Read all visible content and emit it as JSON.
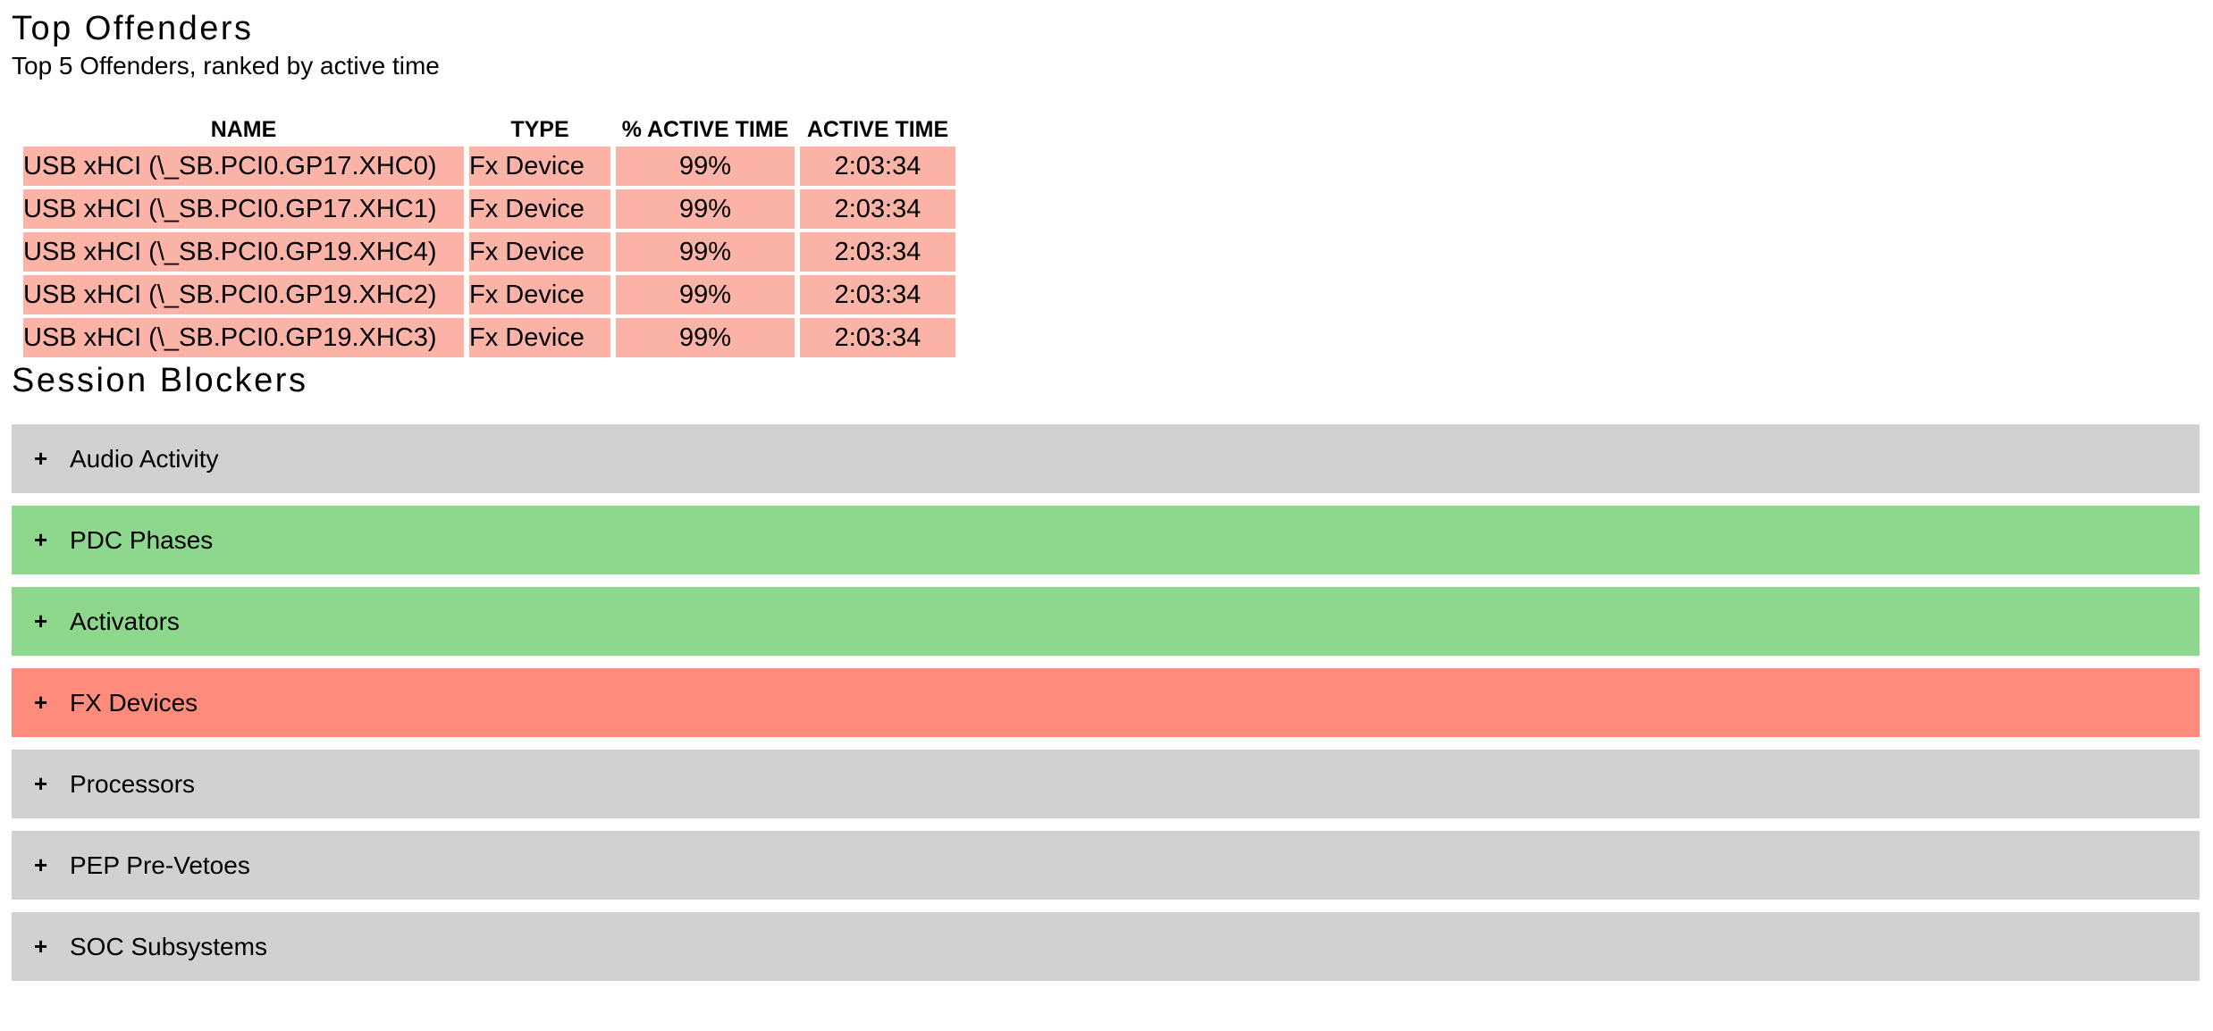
{
  "colors": {
    "row_highlight": "#fbb3a8",
    "bar_gray": "#d1d1d1",
    "bar_green": "#8ed88d",
    "bar_red": "#fd8c7d",
    "text": "#000000"
  },
  "top_offenders": {
    "title": "Top Offenders",
    "subtitle": "Top 5 Offenders, ranked by active time",
    "table": {
      "row_bg": "#fbb3a8",
      "columns": [
        "NAME",
        "TYPE",
        "% ACTIVE TIME",
        "ACTIVE TIME"
      ],
      "rows": [
        {
          "name": "USB xHCI (\\_SB.PCI0.GP17.XHC0)",
          "type": "Fx Device",
          "pct": "99%",
          "time": "2:03:34"
        },
        {
          "name": "USB xHCI (\\_SB.PCI0.GP17.XHC1)",
          "type": "Fx Device",
          "pct": "99%",
          "time": "2:03:34"
        },
        {
          "name": "USB xHCI (\\_SB.PCI0.GP19.XHC4)",
          "type": "Fx Device",
          "pct": "99%",
          "time": "2:03:34"
        },
        {
          "name": "USB xHCI (\\_SB.PCI0.GP19.XHC2)",
          "type": "Fx Device",
          "pct": "99%",
          "time": "2:03:34"
        },
        {
          "name": "USB xHCI (\\_SB.PCI0.GP19.XHC3)",
          "type": "Fx Device",
          "pct": "99%",
          "time": "2:03:34"
        }
      ]
    }
  },
  "session_blockers": {
    "title": "Session Blockers",
    "expand_glyph": "+",
    "sections": [
      {
        "label": "Audio Activity",
        "color": "#d1d1d1"
      },
      {
        "label": "PDC Phases",
        "color": "#8ed88d"
      },
      {
        "label": "Activators",
        "color": "#8ed88d"
      },
      {
        "label": "FX Devices",
        "color": "#fd8c7d"
      },
      {
        "label": "Processors",
        "color": "#d1d1d1"
      },
      {
        "label": "PEP Pre-Vetoes",
        "color": "#d1d1d1"
      },
      {
        "label": "SOC Subsystems",
        "color": "#d1d1d1"
      }
    ]
  }
}
